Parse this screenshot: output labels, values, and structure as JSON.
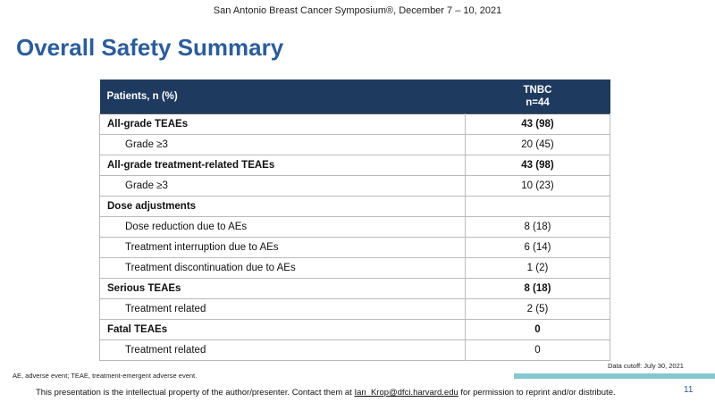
{
  "header": {
    "conference": "San Antonio Breast Cancer Symposium®, December 7 – 10, 2021",
    "title": "Overall Safety Summary"
  },
  "table": {
    "header": {
      "label": "Patients, n (%)",
      "arm": "TNBC",
      "n": "n=44"
    },
    "groups": [
      {
        "label": "All-grade TEAEs",
        "value": "43 (98)",
        "sub": [
          {
            "label": "Grade ≥3",
            "value": "20 (45)"
          }
        ]
      },
      {
        "label": "All-grade treatment-related TEAEs",
        "value": "43 (98)",
        "sub": [
          {
            "label": "Grade ≥3",
            "value": "10 (23)"
          }
        ]
      },
      {
        "label": "Dose adjustments",
        "sub": [
          {
            "label": "Dose reduction due to AEs",
            "value": "8 (18)"
          },
          {
            "label": "Treatment interruption due to AEs",
            "value": "6 (14)"
          },
          {
            "label": "Treatment discontinuation due to AEs",
            "value": "1 (2)"
          }
        ]
      },
      {
        "label": "Serious TEAEs",
        "value": "8 (18)",
        "sub": [
          {
            "label": "Treatment related",
            "value": "2 (5)"
          }
        ]
      },
      {
        "label": "Fatal TEAEs",
        "value": "0",
        "sub": [
          {
            "label": "Treatment related",
            "value": "0"
          }
        ]
      }
    ]
  },
  "footer": {
    "abbreviations": "AE, adverse event; TEAE, treatment-emergent adverse event.",
    "cutoff": "Data cutoff: July 30, 2021",
    "notice": {
      "before": "This presentation is the intellectual property of the author/presenter. Contact them at",
      "email": "Ian_Krop@dfci.harvard.edu",
      "after": "for permission to reprint and/or distribute."
    },
    "page": "11"
  }
}
